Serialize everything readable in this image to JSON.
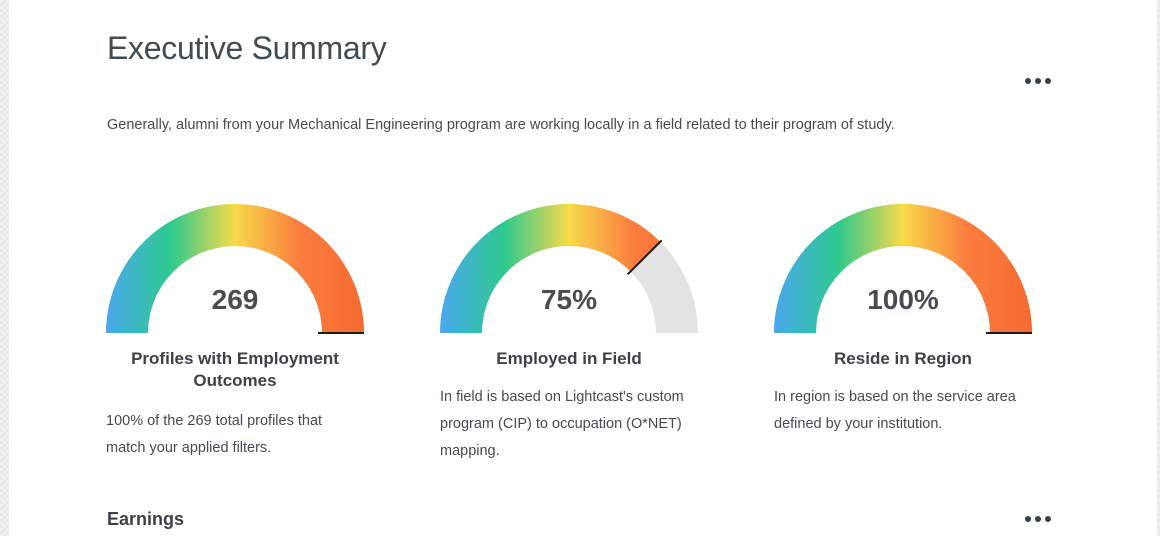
{
  "page": {
    "title": "Executive Summary",
    "summary": "Generally, alumni from your Mechanical Engineering program are working locally in a field related to their program of study."
  },
  "gauges": [
    {
      "value_label": "269",
      "fill_fraction": 1.0,
      "title": "Profiles with Employment Outcomes",
      "description": "100% of the 269 total profiles that match your applied filters."
    },
    {
      "value_label": "75%",
      "fill_fraction": 0.75,
      "title": "Employed in Field",
      "description": "In field is based on Lightcast's custom program (CIP) to occupation (O*NET) mapping."
    },
    {
      "value_label": "100%",
      "fill_fraction": 1.0,
      "title": "Reside in Region",
      "description": "In region is based on the service area defined by your institution."
    }
  ],
  "sections": {
    "earnings_heading": "Earnings"
  },
  "icons": {
    "more": "more-options-icon"
  },
  "colors": {
    "gradient": [
      "#4aa8ef",
      "#2ec98e",
      "#f8d94a",
      "#fa7d3e",
      "#f56a30"
    ],
    "track": "#e3e3e3",
    "needle": "#1b1b1b",
    "text": "#444b52"
  }
}
